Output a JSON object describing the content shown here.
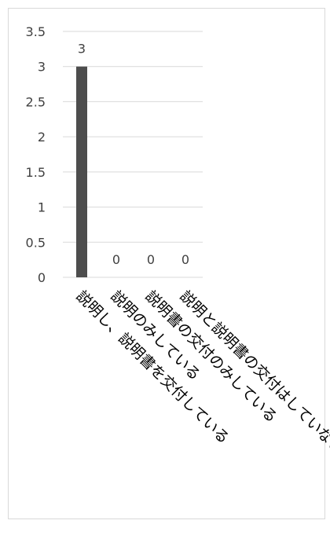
{
  "chart_data": {
    "type": "bar",
    "categories": [
      "説明し、説明書を交付している",
      "説明のみしている",
      "説明書の交付のみしている",
      "説明と説明書の交付はしていない"
    ],
    "values": [
      3,
      0,
      0,
      0
    ],
    "data_labels": [
      "3",
      "0",
      "0",
      "0"
    ],
    "title": "",
    "xlabel": "",
    "ylabel": "",
    "ylim": [
      0,
      3.5
    ],
    "yticks": [
      0,
      0.5,
      1,
      1.5,
      2,
      2.5,
      3,
      3.5
    ],
    "ytick_labels": [
      "0",
      "0.5",
      "1",
      "1.5",
      "2",
      "2.5",
      "3",
      "3.5"
    ],
    "grid": true,
    "legend": "none",
    "bar_color": "#4d4d4d",
    "grid_color": "#d9d9d9"
  }
}
